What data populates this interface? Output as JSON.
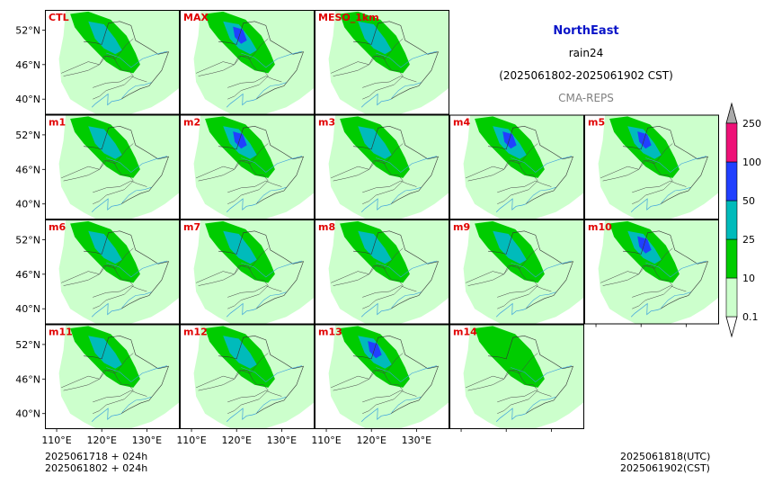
{
  "header": {
    "region": "NorthEast",
    "variable": "rain24",
    "period": "(2025061802-2025061902 CST)",
    "system": "CMA-REPS"
  },
  "colors": {
    "title": "#0a14c8",
    "panel_label": "#e00000",
    "system": "#808080",
    "map_border": "#333333",
    "coast": "#3aa0dd"
  },
  "colorbar": {
    "ticks": [
      "0.1",
      "10",
      "25",
      "50",
      "100",
      "250"
    ],
    "colors": [
      "#ccffcc",
      "#00cc00",
      "#00bbbb",
      "#2040ff",
      "#ee1177"
    ],
    "extend_low_color": "#ffffff",
    "extend_high_color": "#aaaaaa"
  },
  "footer": {
    "init_utc": "2025061718  +  024h",
    "init_cst": "2025061802  +  024h",
    "valid_utc": "2025061818(UTC)",
    "valid_cst": "2025061902(CST)"
  },
  "chart_data": {
    "type": "heatmap",
    "lon_ticks": [
      "110°E",
      "120°E",
      "130°E"
    ],
    "lat_ticks": [
      "52°N",
      "46°N",
      "40°N"
    ],
    "panels": [
      {
        "label": "CTL",
        "max_level": 3
      },
      {
        "label": "MAX",
        "max_level": 4
      },
      {
        "label": "MESO_1km",
        "max_level": 3
      },
      {
        "label": "m1",
        "max_level": 3
      },
      {
        "label": "m2",
        "max_level": 4
      },
      {
        "label": "m3",
        "max_level": 3
      },
      {
        "label": "m4",
        "max_level": 4
      },
      {
        "label": "m5",
        "max_level": 4
      },
      {
        "label": "m6",
        "max_level": 3
      },
      {
        "label": "m7",
        "max_level": 3
      },
      {
        "label": "m8",
        "max_level": 3
      },
      {
        "label": "m9",
        "max_level": 3
      },
      {
        "label": "m10",
        "max_level": 4
      },
      {
        "label": "m11",
        "max_level": 3
      },
      {
        "label": "m12",
        "max_level": 3
      },
      {
        "label": "m13",
        "max_level": 4
      },
      {
        "label": "m14",
        "max_level": 2
      }
    ]
  }
}
